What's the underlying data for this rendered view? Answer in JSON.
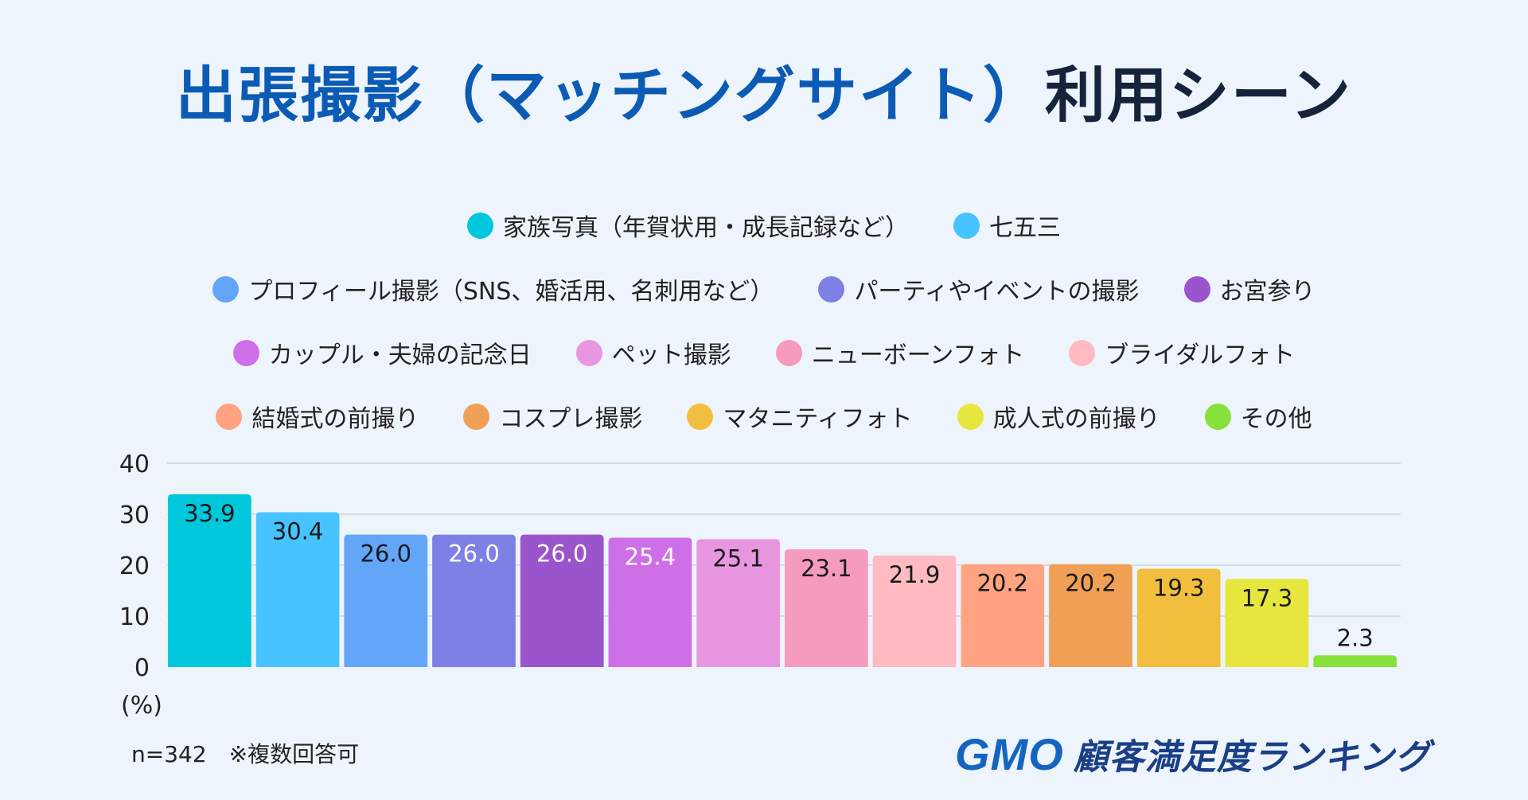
{
  "title_part1": "出張撮影（マッチングサイト）",
  "title_part2": "利用シーン",
  "footnote": "n=342　※複数回答可",
  "brand": {
    "gmo": "GMO",
    "name": "顧客満足度ランキング"
  },
  "chart_data": {
    "type": "bar",
    "title": "出張撮影（マッチングサイト）利用シーン",
    "ylabel": "(%)",
    "ylim": [
      0,
      40
    ],
    "yticks": [
      "0",
      "10",
      "20",
      "30",
      "40"
    ],
    "grid": true,
    "legend_position": "top",
    "series": [
      {
        "name": "家族写真（年賀状用・成長記録など）",
        "value": 33.9,
        "label": "33.9",
        "color": "#00c8dc"
      },
      {
        "name": "七五三",
        "value": 30.4,
        "label": "30.4",
        "color": "#47c3ff"
      },
      {
        "name": "プロフィール撮影（SNS、婚活用、名刺用など）",
        "value": 26.0,
        "label": "26.0",
        "color": "#63a5f8"
      },
      {
        "name": "パーティやイベントの撮影",
        "value": 26.0,
        "label": "26.0",
        "color": "#7e80e6"
      },
      {
        "name": "お宮参り",
        "value": 26.0,
        "label": "26.0",
        "color": "#9a55cc"
      },
      {
        "name": "カップル・夫婦の記念日",
        "value": 25.4,
        "label": "25.4",
        "color": "#cf6fe8"
      },
      {
        "name": "ペット撮影",
        "value": 25.1,
        "label": "25.1",
        "color": "#e896e0"
      },
      {
        "name": "ニューボーンフォト",
        "value": 23.1,
        "label": "23.1",
        "color": "#f59bbd"
      },
      {
        "name": "ブライダルフォト",
        "value": 21.9,
        "label": "21.9",
        "color": "#ffbac2"
      },
      {
        "name": "結婚式の前撮り",
        "value": 20.2,
        "label": "20.2",
        "color": "#ffa382"
      },
      {
        "name": "コスプレ撮影",
        "value": 20.2,
        "label": "20.2",
        "color": "#f0a055"
      },
      {
        "name": "マタニティフォト",
        "value": 19.3,
        "label": "19.3",
        "color": "#f2be3e"
      },
      {
        "name": "成人式の前撮り",
        "value": 17.3,
        "label": "17.3",
        "color": "#e6e63e"
      },
      {
        "name": "その他",
        "value": 2.3,
        "label": "2.3",
        "color": "#86e23a"
      }
    ]
  }
}
